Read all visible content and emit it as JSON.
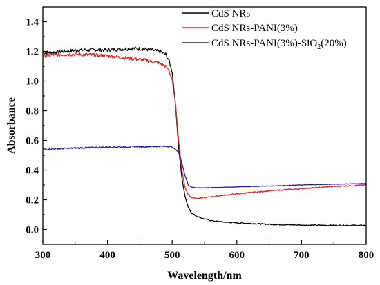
{
  "chart_data": {
    "type": "line",
    "xlabel": "Wavelength/nm",
    "ylabel": "Absorbance",
    "xlim": [
      300,
      800
    ],
    "ylim": [
      -0.1,
      1.5
    ],
    "xticks": [
      300,
      400,
      500,
      600,
      700,
      800
    ],
    "yticks": [
      0.0,
      0.2,
      0.4,
      0.6,
      0.8,
      1.0,
      1.2,
      1.4
    ],
    "xtick_labels": [
      "300",
      "400",
      "500",
      "600",
      "700",
      "800"
    ],
    "ytick_labels": [
      "0.0",
      "0.2",
      "0.4",
      "0.6",
      "0.8",
      "1.0",
      "1.2",
      "1.4"
    ],
    "grid": false,
    "legend_position": "top-right",
    "series": [
      {
        "name": "CdS NRs",
        "color": "#000000",
        "noise": 0.012,
        "x": [
          300,
          330,
          360,
          400,
          440,
          460,
          480,
          490,
          495,
          500,
          505,
          510,
          515,
          520,
          525,
          530,
          540,
          550,
          560,
          580,
          600,
          650,
          700,
          750,
          800
        ],
        "y": [
          1.19,
          1.2,
          1.21,
          1.21,
          1.22,
          1.215,
          1.2,
          1.18,
          1.14,
          1.06,
          0.85,
          0.55,
          0.35,
          0.22,
          0.15,
          0.11,
          0.085,
          0.07,
          0.06,
          0.05,
          0.045,
          0.035,
          0.03,
          0.028,
          0.028
        ]
      },
      {
        "name": "CdS NRs-PANI(3%)",
        "color": "#e02020",
        "noise": 0.012,
        "x": [
          300,
          330,
          360,
          400,
          440,
          460,
          480,
          490,
          495,
          500,
          505,
          510,
          515,
          520,
          525,
          530,
          540,
          560,
          600,
          650,
          700,
          750,
          800
        ],
        "y": [
          1.17,
          1.18,
          1.18,
          1.17,
          1.15,
          1.14,
          1.12,
          1.1,
          1.07,
          1.01,
          0.85,
          0.6,
          0.4,
          0.28,
          0.235,
          0.215,
          0.21,
          0.22,
          0.24,
          0.26,
          0.275,
          0.29,
          0.3
        ]
      },
      {
        "name": "CdS NRs-PANI(3%)-SiO2(20%)",
        "color": "#1a1ab4",
        "noise": 0.005,
        "x": [
          300,
          330,
          360,
          400,
          440,
          480,
          495,
          500,
          505,
          510,
          515,
          520,
          525,
          530,
          540,
          560,
          600,
          650,
          700,
          750,
          800
        ],
        "y": [
          0.54,
          0.545,
          0.55,
          0.555,
          0.558,
          0.56,
          0.56,
          0.555,
          0.54,
          0.52,
          0.45,
          0.36,
          0.3,
          0.285,
          0.28,
          0.282,
          0.287,
          0.293,
          0.3,
          0.305,
          0.31
        ]
      }
    ]
  },
  "legend": {
    "item0": "CdS NRs",
    "item1": "CdS NRs-PANI(3%)",
    "item2_pre": "CdS NRs-PANI(3%)-SiO",
    "item2_sub": "2",
    "item2_post": "(20%)"
  }
}
